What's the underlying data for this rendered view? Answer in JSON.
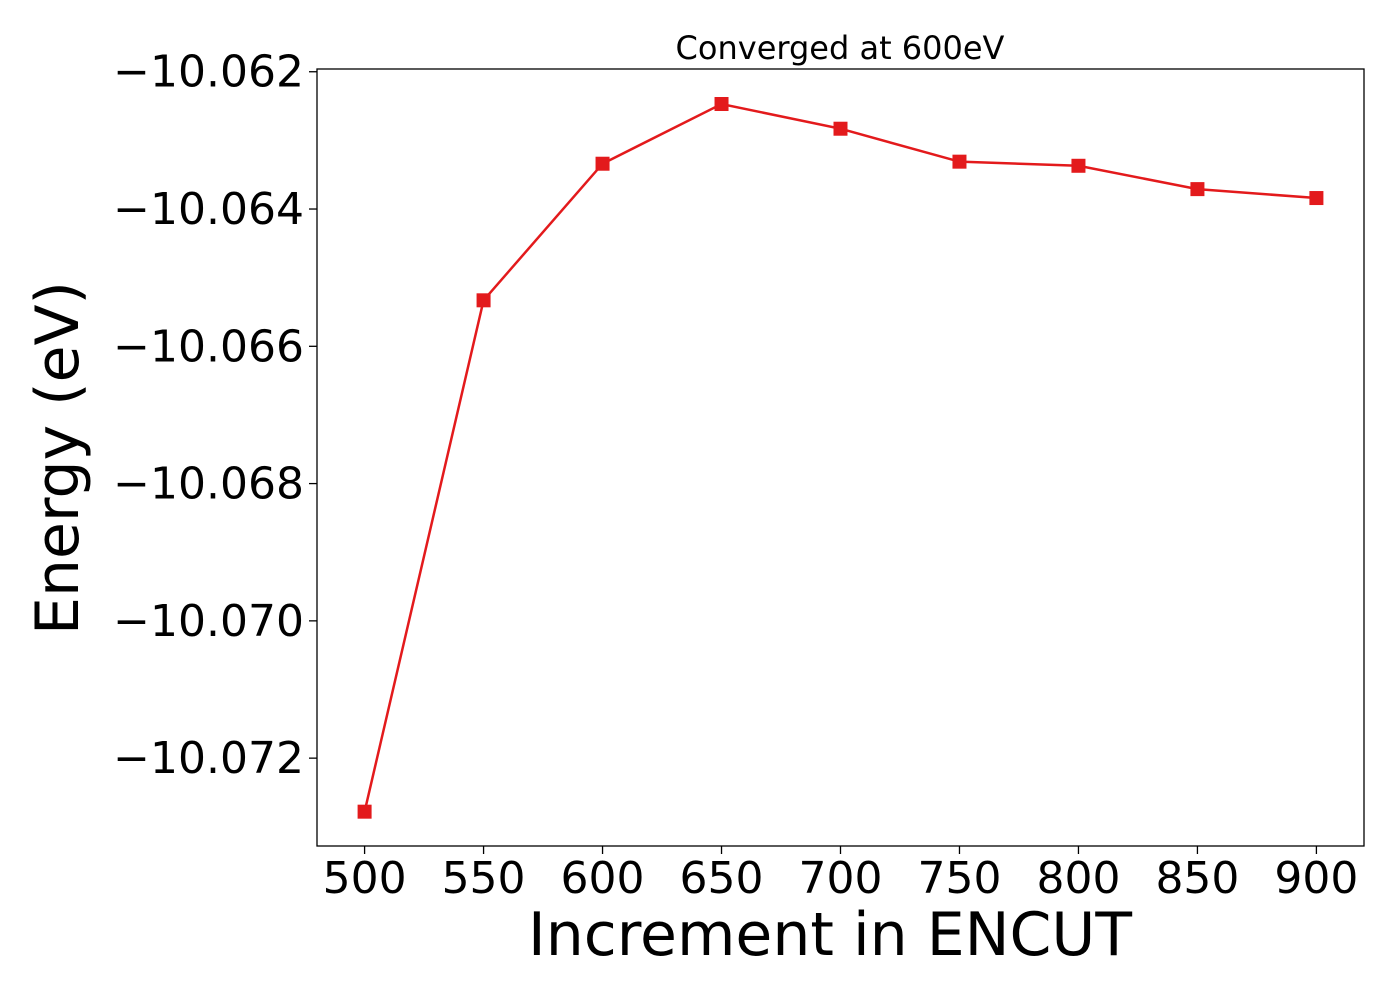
{
  "chart_data": {
    "type": "line",
    "title": "Converged at 600eV",
    "xlabel": "Increment in ENCUT",
    "ylabel": "Energy (eV)",
    "x": [
      500,
      550,
      600,
      650,
      700,
      750,
      800,
      850,
      900
    ],
    "series": [
      {
        "values": [
          -10.07278,
          -10.06533,
          -10.06334,
          -10.06247,
          -10.06283,
          -10.06331,
          -10.06337,
          -10.06371,
          -10.06384
        ],
        "color": "#e31a1c",
        "marker": "square"
      }
    ],
    "xticks": [
      500,
      550,
      600,
      650,
      700,
      750,
      800,
      850,
      900
    ],
    "xtick_labels": [
      "500",
      "550",
      "600",
      "650",
      "700",
      "750",
      "800",
      "850",
      "900"
    ],
    "yticks": [
      -10.062,
      -10.064,
      -10.066,
      -10.068,
      -10.07,
      -10.072
    ],
    "ytick_labels": [
      "−10.062",
      "−10.064",
      "−10.066",
      "−10.068",
      "−10.070",
      "−10.072"
    ],
    "xlim": [
      480,
      920
    ],
    "ylim": [
      -10.07328,
      -10.06196
    ],
    "grid": false,
    "legend": "none"
  }
}
